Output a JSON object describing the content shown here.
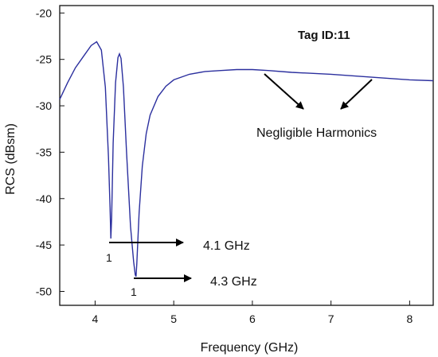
{
  "chart_data": {
    "type": "line",
    "title": "",
    "xlabel": "Frequency (GHz)",
    "ylabel": "RCS (dBsm)",
    "xlim": [
      3.55,
      8.3
    ],
    "ylim": [
      -51.5,
      -19.2
    ],
    "xticks": [
      4,
      5,
      6,
      7,
      8
    ],
    "yticks": [
      -20,
      -25,
      -30,
      -35,
      -40,
      -45,
      -50
    ],
    "grid": false,
    "legend": "none",
    "series_color": "#2b2f9e",
    "annotation_color": "#000000",
    "series": [
      {
        "x": [
          3.55,
          3.65,
          3.75,
          3.85,
          3.95,
          4.02,
          4.08,
          4.13,
          4.17,
          4.19,
          4.2,
          4.21,
          4.23,
          4.26,
          4.29,
          4.31,
          4.33,
          4.36,
          4.4,
          4.45,
          4.49,
          4.51,
          4.52,
          4.53,
          4.56,
          4.6,
          4.65,
          4.7,
          4.8,
          4.9,
          5.0,
          5.2,
          5.4,
          5.6,
          5.8,
          6.0,
          6.2,
          6.5,
          7.0,
          7.5,
          8.0,
          8.3
        ],
        "y": [
          -29.3,
          -27.5,
          -25.9,
          -24.7,
          -23.5,
          -23.1,
          -24.0,
          -28.0,
          -35.5,
          -41.0,
          -44.3,
          -42.0,
          -34.0,
          -27.5,
          -24.8,
          -24.4,
          -24.9,
          -28.0,
          -35.0,
          -43.0,
          -46.8,
          -48.2,
          -48.4,
          -47.0,
          -41.5,
          -36.5,
          -33.0,
          -31.0,
          -29.0,
          -27.9,
          -27.2,
          -26.6,
          -26.3,
          -26.2,
          -26.1,
          -26.1,
          -26.2,
          -26.4,
          -26.6,
          -26.9,
          -27.2,
          -27.3
        ]
      }
    ],
    "annotations": {
      "tag": "Tag ID:11",
      "harmonics": "Negligible Harmonics",
      "resonance1_freq": "4.1 GHz",
      "resonance2_freq": "4.3 GHz",
      "resonance1_mode": "1",
      "resonance2_mode": "1"
    }
  }
}
